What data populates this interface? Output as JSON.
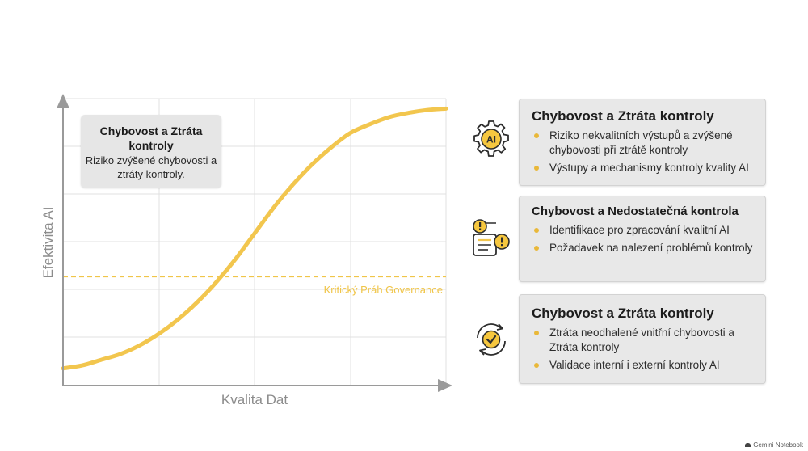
{
  "chart_data": {
    "type": "line",
    "xlabel": "Kvalita Dat",
    "ylabel": "Efektivita AI",
    "xlim": [
      0,
      1
    ],
    "ylim": [
      0,
      1
    ],
    "grid": true,
    "series": [
      {
        "color": "#f2c64e",
        "x": [
          0,
          0.05,
          0.1,
          0.15,
          0.2,
          0.25,
          0.3,
          0.35,
          0.4,
          0.45,
          0.5,
          0.55,
          0.6,
          0.65,
          0.7,
          0.75,
          0.8,
          0.85,
          0.9,
          0.95,
          1.0
        ],
        "y": [
          0.06,
          0.07,
          0.09,
          0.11,
          0.14,
          0.18,
          0.23,
          0.29,
          0.36,
          0.44,
          0.53,
          0.62,
          0.7,
          0.77,
          0.83,
          0.88,
          0.91,
          0.935,
          0.95,
          0.96,
          0.965
        ]
      }
    ],
    "threshold": {
      "y": 0.38,
      "label": "Kritický Práh Governance",
      "color": "#f0c548",
      "style": "dashed"
    },
    "annotation": {
      "title": "Chybovost a Ztráta kontroly",
      "body": "Riziko zvýšené chybovosti a ztráty kontroly."
    }
  },
  "cards": [
    {
      "icon": "ai-gear-icon",
      "title": "Chybovost a Ztráta kontroly",
      "items": [
        "Riziko nekvalitních výstupů a zvýšené chybovosti při ztrátě kontroly",
        "Výstupy a mechanismy kontroly kvality AI"
      ]
    },
    {
      "icon": "alert-document-icon",
      "title": "Chybovost a Nedostatečná kontrola",
      "items": [
        "Identifikace pro zpracování kvalitní AI",
        "Požadavek na nalezení problémů kontroly"
      ]
    },
    {
      "icon": "check-cycle-icon",
      "title": "Chybovost a Ztráta kontroly",
      "items": [
        "Ztráta neodhalené vnitřní chybovosti a Ztráta kontroly",
        "Validace interní i externí kontroly AI"
      ]
    }
  ],
  "icons": {
    "ai_badge": "AI"
  },
  "colors": {
    "accent": "#f2c64e",
    "icon_fill": "#f6c73f",
    "card_bg": "#e8e8e8",
    "text": "#1c1c1c"
  },
  "brand": "Gemini Notebook"
}
